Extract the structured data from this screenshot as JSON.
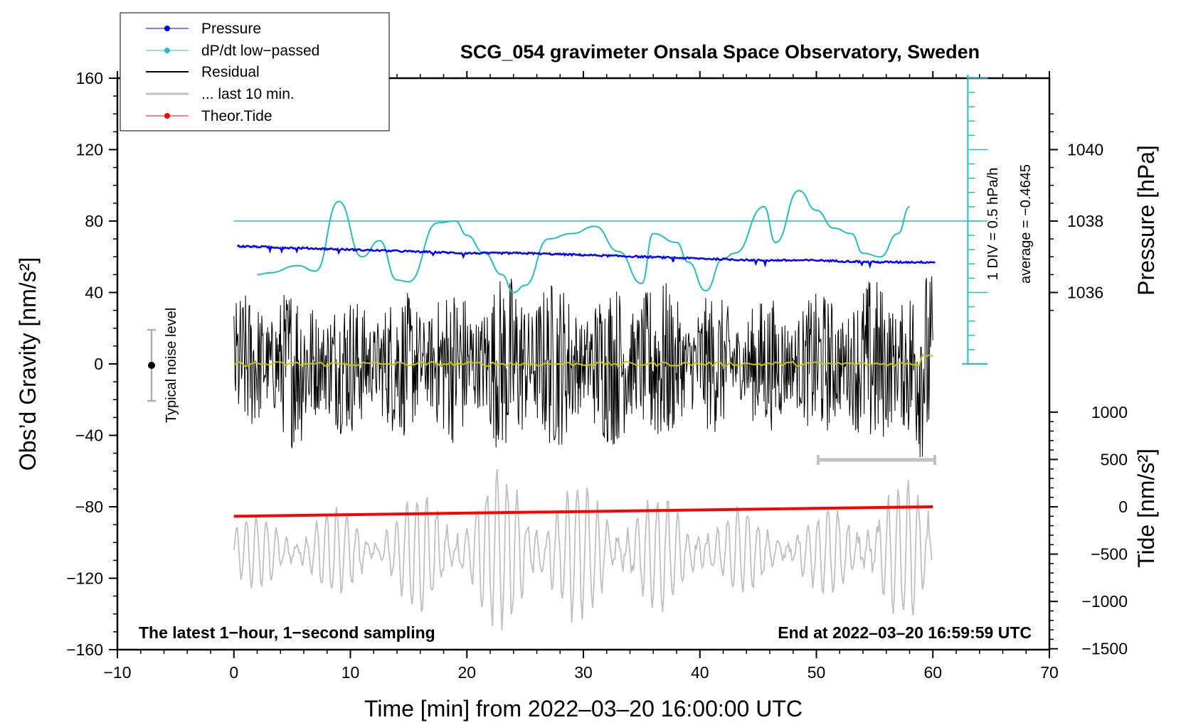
{
  "chart_data": {
    "type": "line",
    "title": "SCG_054 gravimeter Onsala Space Observatory, Sweden",
    "xlabel": "Time [min] from 2022–03–20 16:00:00 UTC",
    "ylabel": "Obs’d Gravity [nm/s²]",
    "y2label_pressure": "Pressure [hPa]",
    "y2label_tide": "Tide [nm/s²]",
    "xlim": [
      -10,
      70
    ],
    "ylim": [
      -160,
      160
    ],
    "pressure_axis": {
      "values": [
        1036,
        1038,
        1040
      ],
      "labels": [
        "1036",
        "1038",
        "1040"
      ]
    },
    "tide_axis": {
      "values": [
        1000,
        500,
        0,
        -500,
        -1000,
        -1500
      ],
      "labels": [
        "1000",
        "500",
        "0",
        "−500",
        "−1000",
        "−1500"
      ]
    },
    "x_ticks": [
      -10,
      0,
      10,
      20,
      30,
      40,
      50,
      60,
      70
    ],
    "x_tick_labels": [
      "−10",
      "0",
      "10",
      "20",
      "30",
      "40",
      "50",
      "60",
      "70"
    ],
    "y_ticks": [
      -160,
      -120,
      -80,
      -40,
      0,
      40,
      80,
      120,
      160
    ],
    "y_tick_labels": [
      "−160",
      "−120",
      "−80",
      "−40",
      "0",
      "40",
      "80",
      "120",
      "160"
    ],
    "legend": {
      "position": "top-left",
      "entries": [
        "Pressure",
        "dP/dt low−passed",
        "Residual",
        "... last 10 min.",
        "Theor.Tide"
      ]
    },
    "annotations": {
      "left_note": "The latest 1−hour, 1−second sampling",
      "right_note": "End at 2022–03–20 16:59:59 UTC",
      "noise_label": "Typical noise level",
      "div_label": "1 DIV = 0.5 hPa/h",
      "average_label": "average = −0.4645"
    },
    "series": [
      {
        "name": "Pressure",
        "unit": "hPa",
        "x": [
          0,
          5,
          10,
          15,
          20,
          25,
          30,
          35,
          40,
          45,
          50,
          55,
          60
        ],
        "values": [
          1037.3,
          1037.25,
          1037.2,
          1037.15,
          1037.1,
          1037.1,
          1037.05,
          1037.0,
          1036.95,
          1036.9,
          1036.9,
          1036.85,
          1036.85
        ]
      },
      {
        "name": "dP/dt low−passed",
        "unit": "y-axis equivalent",
        "x": [
          2,
          3,
          5.5,
          7,
          9,
          11,
          12.5,
          14,
          15,
          17.5,
          19,
          20,
          21.5,
          23,
          24,
          25,
          27,
          29,
          31,
          33,
          35,
          36,
          38,
          39,
          40.5,
          42,
          43,
          45.5,
          46.5,
          48.5,
          50,
          51.5,
          53,
          54,
          55.5,
          57,
          58
        ],
        "values": [
          50,
          51,
          55,
          52,
          91,
          60,
          69,
          47,
          46,
          79,
          80,
          72,
          62,
          50,
          40,
          44,
          70,
          73,
          77,
          63,
          45,
          73,
          68,
          57,
          41,
          59,
          62,
          88,
          68,
          97,
          86,
          76,
          73,
          62,
          60,
          73,
          88
        ]
      },
      {
        "name": "Residual",
        "unit": "nm/s²",
        "description_level": "noise envelope around 0",
        "x": [
          0,
          5,
          10,
          15,
          20,
          25,
          30,
          35,
          40,
          45,
          50,
          55,
          60
        ],
        "values": [
          0,
          0,
          0,
          0,
          0,
          0,
          0,
          0,
          0,
          0,
          0,
          0,
          0
        ],
        "amplitude": [
          38,
          48,
          40,
          42,
          46,
          55,
          42,
          52,
          40,
          38,
          40,
          50,
          55
        ]
      },
      {
        "name": "... last 10 min.",
        "unit": "nm/s² (offset)",
        "x": [
          0,
          5,
          10,
          15,
          20,
          25,
          30,
          35,
          40,
          45,
          50,
          55,
          60
        ],
        "values": [
          -105,
          -105,
          -105,
          -105,
          -105,
          -105,
          -105,
          -105,
          -105,
          -105,
          -105,
          -105,
          -105
        ],
        "amplitude": [
          18,
          22,
          25,
          30,
          40,
          45,
          38,
          32,
          28,
          22,
          20,
          40,
          35
        ]
      },
      {
        "name": "Theor.Tide",
        "unit": "nm/s²",
        "x": [
          0,
          60
        ],
        "values": [
          -100,
          0
        ]
      }
    ],
    "colors": {
      "pressure": "#0000ff",
      "dpdt": "#20c0c0",
      "residual": "#000000",
      "last10": "#c0c0c0",
      "tide": "#ff0000",
      "mean_residual": "#c8c800",
      "noise_bar": "#b0b0b0"
    }
  }
}
